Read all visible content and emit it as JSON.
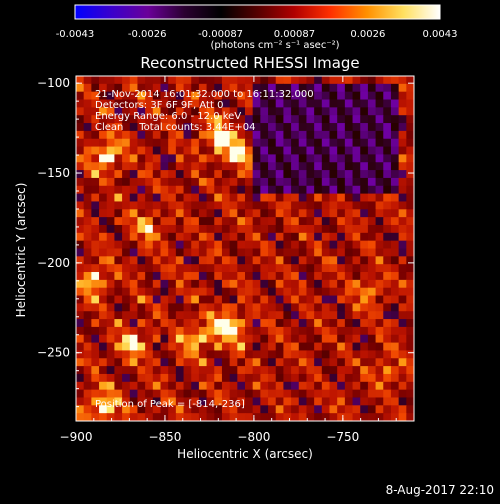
{
  "colorbar": {
    "ticks": [
      "-0.0043",
      "-0.0026",
      "-0.00087",
      "0.00087",
      "0.0026",
      "0.0043"
    ],
    "tick_values": [
      -0.0043,
      -0.0026,
      -0.00087,
      0.00087,
      0.0026,
      0.0043
    ],
    "range": [
      -0.0043,
      0.0043
    ],
    "units_text": "(photons cm⁻² s⁻¹ asec⁻²)",
    "stops": [
      "#0000ff",
      "#3a00cc",
      "#6a0099",
      "#2a0030",
      "#000000",
      "#550000",
      "#b00000",
      "#ff3000",
      "#ff9000",
      "#ffe060",
      "#ffffff"
    ]
  },
  "chart_data": {
    "type": "heatmap",
    "title": "Reconstructed RHESSI Image",
    "xlabel": "Heliocentric X (arcsec)",
    "ylabel": "Heliocentric Y (arcsec)",
    "xlim": [
      -900,
      -710
    ],
    "ylim": [
      -288,
      -96
    ],
    "xticks": [
      -900,
      -850,
      -800,
      -750
    ],
    "yticks": [
      -100,
      -150,
      -200,
      -250
    ],
    "xtick_labels": [
      "−900",
      "−850",
      "−800",
      "−750"
    ],
    "ytick_labels": [
      "−100",
      "−150",
      "−200",
      "−250"
    ],
    "annotations": [
      "21-Nov-2014 16:01:32.000 to 16:11:32.000",
      "Detectors: 3F 6F 9F, Att 0",
      "Energy Range: 6.0 - 12.0 keV",
      "Clean     Total counts: 3.44E+04"
    ],
    "peak_label": "Position of Peak = [-814,-236]",
    "peak": [
      -814,
      -236
    ],
    "bright_spots": [
      {
        "x": -882,
        "y": -140,
        "intensity": 0.9
      },
      {
        "x": -890,
        "y": -210,
        "intensity": 0.7
      },
      {
        "x": -868,
        "y": -245,
        "intensity": 0.7
      },
      {
        "x": -832,
        "y": -242,
        "intensity": 0.75
      },
      {
        "x": -814,
        "y": -236,
        "intensity": 1.0
      },
      {
        "x": -820,
        "y": -130,
        "intensity": 0.85
      },
      {
        "x": -808,
        "y": -140,
        "intensity": 0.8
      },
      {
        "x": -885,
        "y": -280,
        "intensity": 0.9
      },
      {
        "x": -860,
        "y": -180,
        "intensity": 0.55
      },
      {
        "x": -735,
        "y": -215,
        "intensity": 0.5
      },
      {
        "x": -725,
        "y": -260,
        "intensity": 0.45
      }
    ],
    "dark_region": {
      "x": [
        -800,
        -720
      ],
      "y": [
        -160,
        -100
      ]
    }
  },
  "footer": {
    "date": "8-Aug-2017 22:10"
  }
}
